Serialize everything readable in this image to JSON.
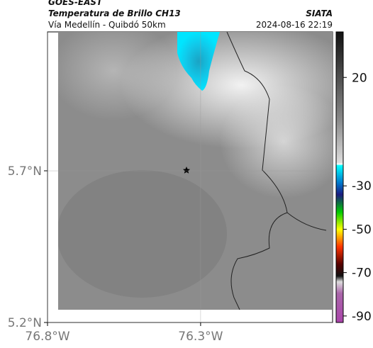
{
  "header": {
    "source": "GOES-EAST",
    "title": "Temperatura de Brillo CH13",
    "region": "Vía Medellín - Quibdó 50km",
    "brand": "SIATA",
    "timestamp": "2024-08-16 22:19"
  },
  "map": {
    "latlim": [
      5.2,
      6.158
    ],
    "lonlim": [
      -76.8,
      -75.869
    ],
    "latticks": [
      {
        "value": 5.7,
        "label": "5.7°N"
      },
      {
        "value": 5.2,
        "label": "5.2°N"
      }
    ],
    "lonticks": [
      {
        "value": -76.8,
        "label": "76.8°W"
      },
      {
        "value": -76.3,
        "label": "76.3°W"
      }
    ]
  },
  "colorbar": {
    "lim": [
      -93,
      41
    ],
    "ticks": [
      20,
      -30,
      -50,
      -70,
      -90
    ]
  }
}
